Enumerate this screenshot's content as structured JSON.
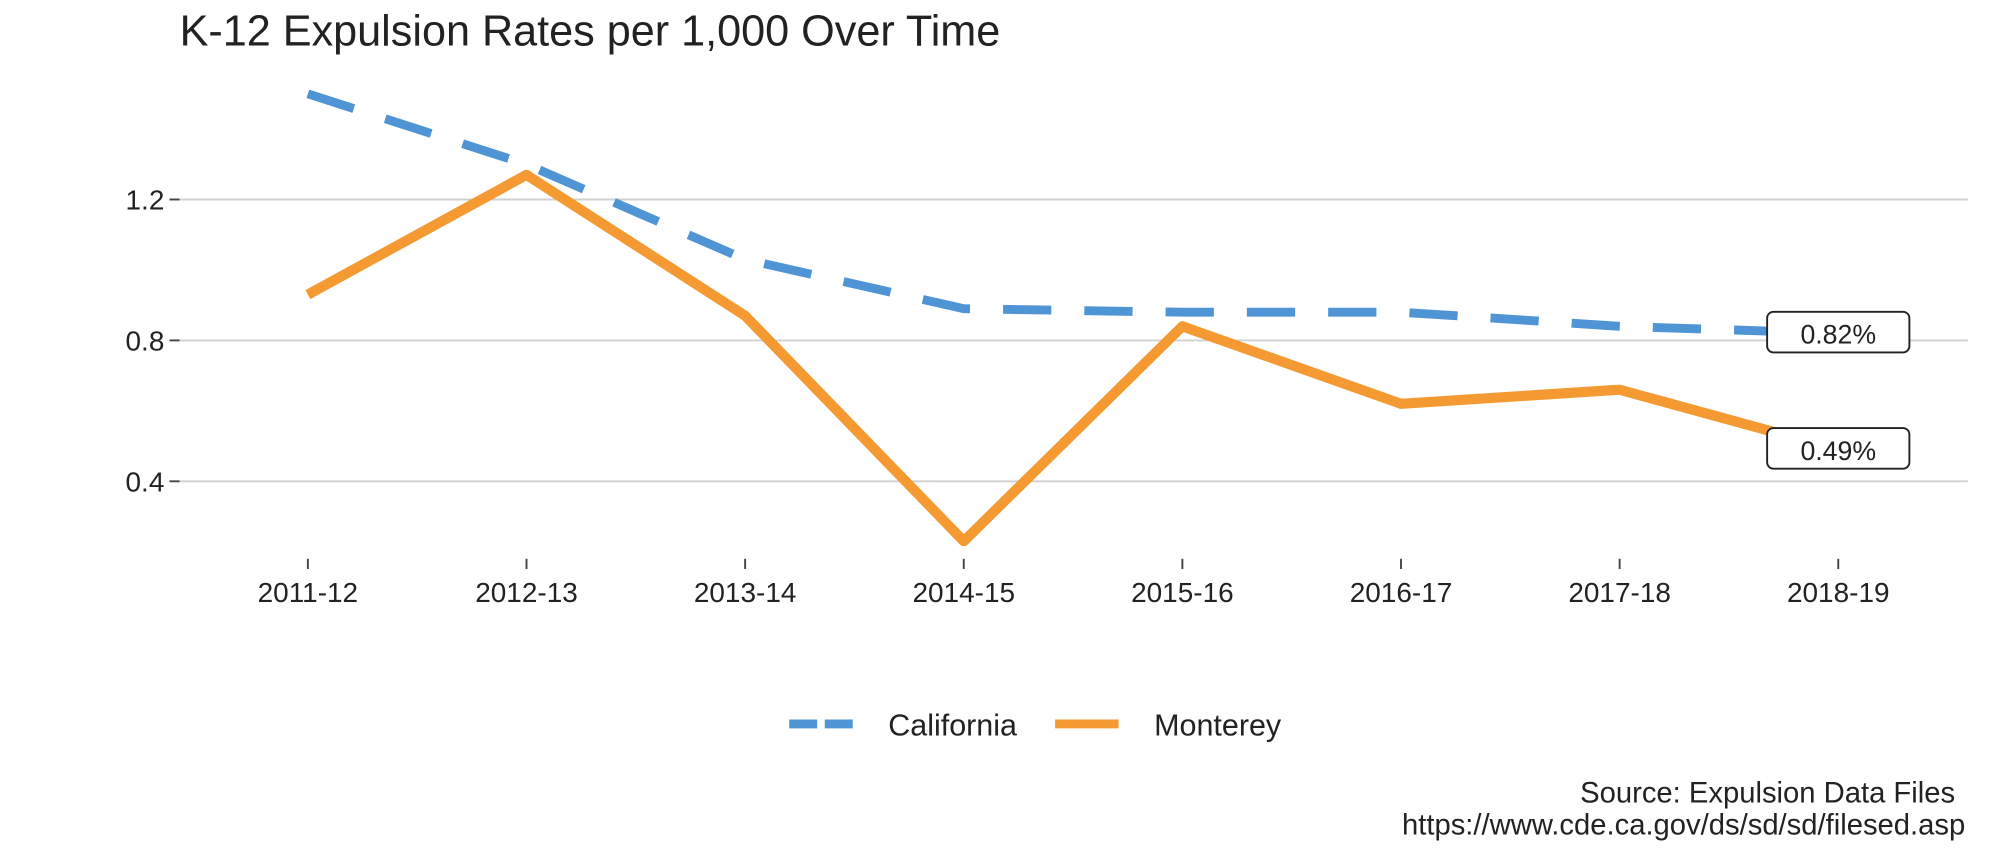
{
  "chart_data": {
    "type": "line",
    "title": "K-12 Expulsion Rates per 1,000 Over Time",
    "categories": [
      "2011-12",
      "2012-13",
      "2013-14",
      "2014-15",
      "2015-16",
      "2016-17",
      "2017-18",
      "2018-19"
    ],
    "series": [
      {
        "name": "California",
        "color": "#4f94d4",
        "dash": true,
        "values": [
          1.5,
          1.3,
          1.03,
          0.89,
          0.88,
          0.88,
          0.84,
          0.82
        ],
        "value_labels": [
          null,
          null,
          null,
          null,
          null,
          null,
          null,
          "0.82%"
        ]
      },
      {
        "name": "Monterey",
        "color": "#f59a32",
        "dash": false,
        "values": [
          0.93,
          1.27,
          0.87,
          0.23,
          0.84,
          0.62,
          0.66,
          0.49
        ],
        "value_labels": [
          null,
          null,
          null,
          null,
          null,
          null,
          null,
          "0.49%"
        ]
      }
    ],
    "ylim": [
      0.18,
      1.55
    ],
    "yticks": [
      0.4,
      0.8,
      1.2
    ],
    "grid": true,
    "legend": "bottom",
    "caption": [
      "Source: Expulsion Data Files",
      "https://www.cde.ca.gov/ds/sd/sd/filesed.asp"
    ]
  }
}
